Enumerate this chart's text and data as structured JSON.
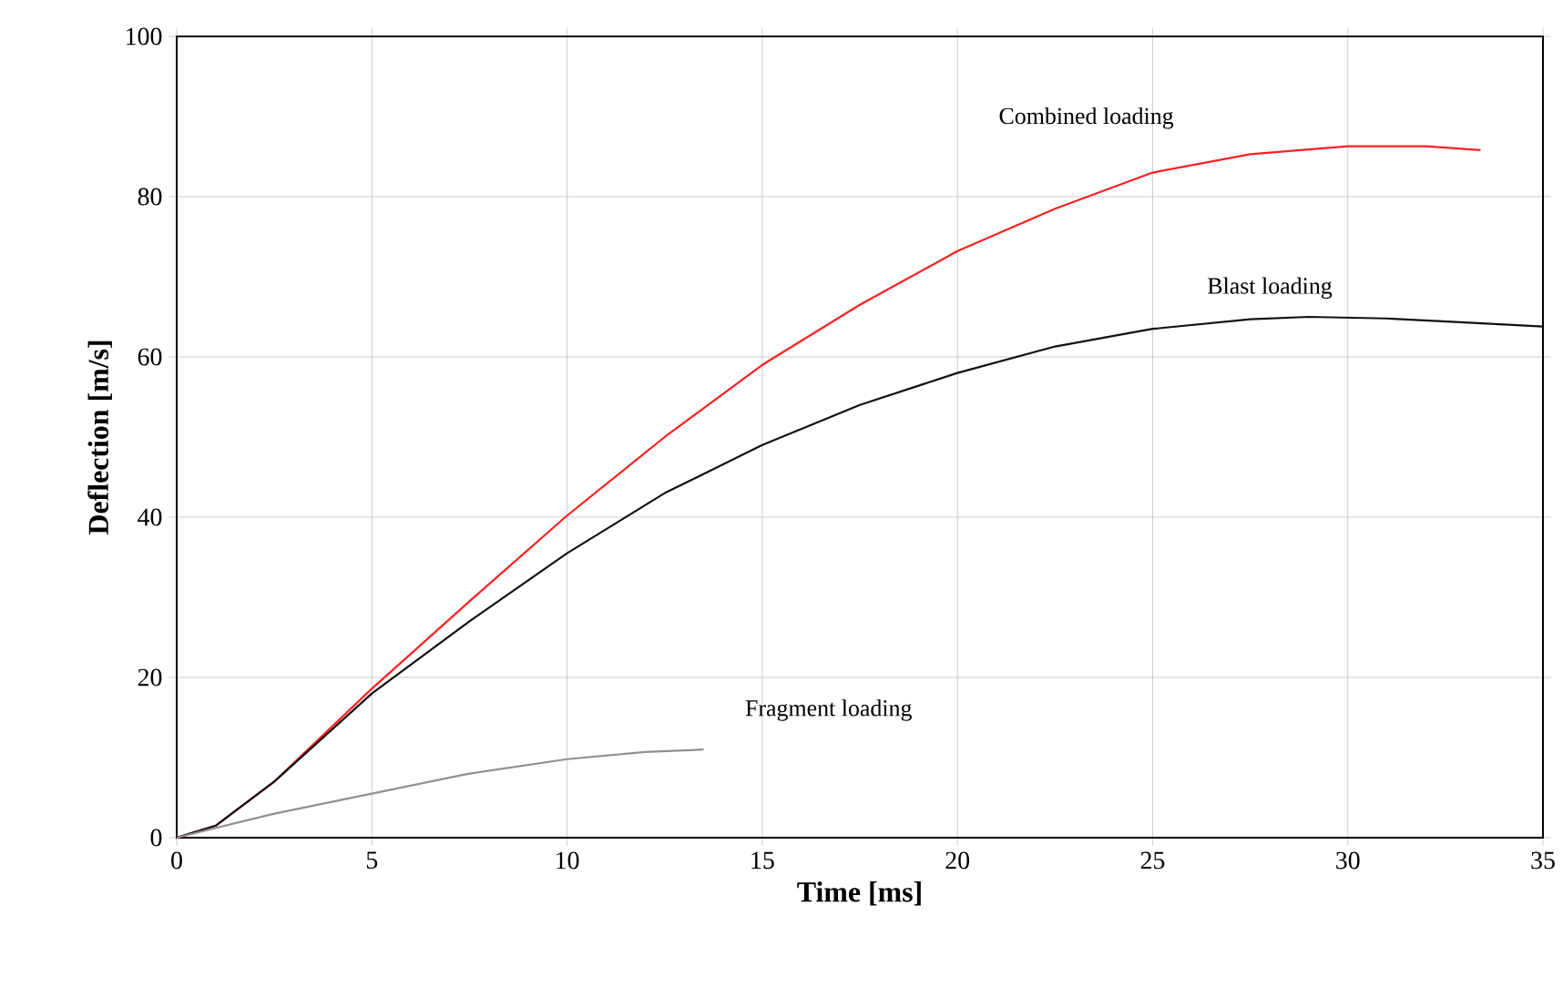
{
  "chart_data": {
    "type": "line",
    "xlabel": "Time [ms]",
    "ylabel": "Deflection [m/s]",
    "xlim": [
      0,
      35
    ],
    "ylim": [
      0,
      100
    ],
    "xticks": [
      0,
      5,
      10,
      15,
      20,
      25,
      30,
      35
    ],
    "yticks": [
      0,
      20,
      40,
      60,
      80,
      100
    ],
    "grid": true,
    "legend": false,
    "marker": "none",
    "line_style": "solid",
    "series": [
      {
        "name": "Combined loading",
        "color": "#ff2020",
        "x": [
          0,
          1,
          2.5,
          5,
          7.5,
          10,
          12.5,
          15,
          17.5,
          20,
          22.5,
          25,
          27.5,
          30,
          32,
          33.4
        ],
        "values": [
          0,
          1.5,
          7,
          18.6,
          29.5,
          40.2,
          50,
          59,
          66.5,
          73.2,
          78.5,
          83,
          85.3,
          86.3,
          86.3,
          85.8
        ]
      },
      {
        "name": "Blast loading",
        "color": "#111111",
        "x": [
          0,
          1,
          2.5,
          5,
          7.5,
          10,
          12.5,
          15,
          17.5,
          20,
          22.5,
          25,
          27.5,
          29,
          31,
          33,
          35
        ],
        "values": [
          0,
          1.5,
          7,
          18,
          27,
          35.5,
          43,
          49,
          54,
          58,
          61.3,
          63.5,
          64.7,
          65,
          64.8,
          64.3,
          63.8
        ]
      },
      {
        "name": "Fragment loading",
        "color": "#909090",
        "x": [
          0,
          2.5,
          5,
          7.5,
          10,
          12,
          13.5
        ],
        "values": [
          0,
          3,
          5.5,
          8,
          9.8,
          10.7,
          11
        ]
      }
    ]
  }
}
